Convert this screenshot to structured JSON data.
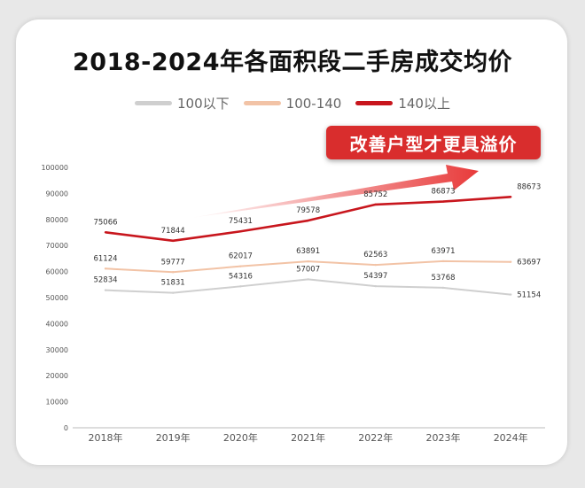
{
  "chart_data": {
    "type": "line",
    "title": "2018-2024年各面积段二手房成交均价",
    "categories": [
      "2018年",
      "2019年",
      "2020年",
      "2021年",
      "2022年",
      "2023年",
      "2024年"
    ],
    "ylim": [
      0,
      100000
    ],
    "yticks": [
      0,
      10000,
      20000,
      30000,
      40000,
      50000,
      60000,
      70000,
      80000,
      90000,
      100000
    ],
    "grid": false,
    "legend_position": "top",
    "series": [
      {
        "name": "100以下",
        "color": "#cfcfcf",
        "values": [
          52834,
          51831,
          54316,
          57007,
          54397,
          53768,
          51154
        ]
      },
      {
        "name": "100-140",
        "color": "#f2c3a6",
        "values": [
          61124,
          59777,
          62017,
          63891,
          62563,
          63971,
          63697
        ]
      },
      {
        "name": "140以上",
        "color": "#c8161d",
        "values": [
          75066,
          71844,
          75431,
          79578,
          85752,
          86873,
          88673
        ]
      }
    ],
    "annotation": "改善户型才更具溢价"
  }
}
